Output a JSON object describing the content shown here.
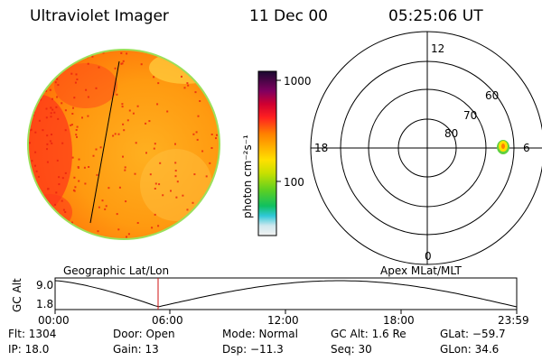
{
  "header": {
    "instrument": "Ultraviolet Imager",
    "date": "11 Dec 00",
    "time": "05:25:06 UT"
  },
  "colorbar": {
    "unit_label": "photon cm⁻²s⁻¹",
    "tick_1000": "1000",
    "tick_100": "100"
  },
  "polar_plot": {
    "label_12": "12",
    "label_18": "18",
    "label_6": "6",
    "label_0": "0",
    "lat_60": "60",
    "lat_70": "70",
    "lat_80": "80"
  },
  "timeline": {
    "left_title": "Geographic Lat/Lon",
    "right_title": "Apex MLat/MLT",
    "ylabel": "GC Alt",
    "ytick_top": "9.0",
    "ytick_bottom": "1.8",
    "xticks": [
      "00:00",
      "06:00",
      "12:00",
      "18:00",
      "23:59"
    ]
  },
  "info": {
    "flt": "Flt: 1304",
    "ip": "IP: 18.0",
    "door": "Door: Open",
    "gain": "Gain: 13",
    "mode": "Mode: Normal",
    "dsp": "Dsp:  −11.3",
    "gcalt": "GC Alt: 1.6 Re",
    "seq": "Seq: 30",
    "glat": "GLat:  −59.7",
    "glon": "GLon:  34.6"
  }
}
